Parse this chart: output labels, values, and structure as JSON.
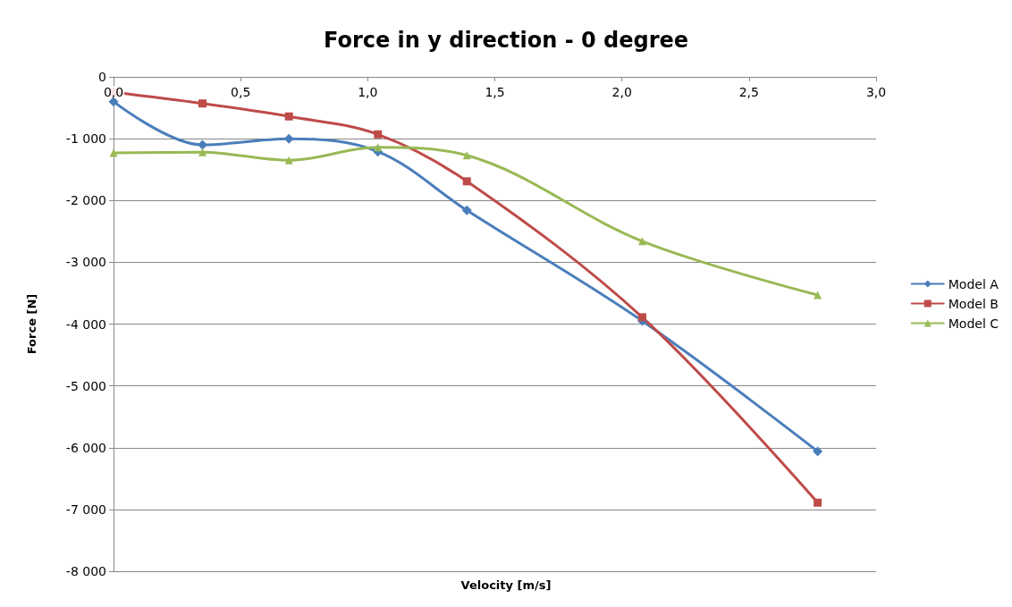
{
  "chart_data": {
    "type": "line",
    "title": "Force in y direction - 0 degree",
    "xlabel": "Velocity [m/s]",
    "ylabel": "Force [N]",
    "x": [
      0,
      0.35,
      0.69,
      1.04,
      1.39,
      2.08,
      2.77
    ],
    "series": [
      {
        "name": "Model A",
        "color": "#4a7ebb",
        "marker": "diamond",
        "values": [
          -400,
          -1100,
          -1000,
          -1210,
          -2160,
          -3950,
          -6060
        ]
      },
      {
        "name": "Model B",
        "color": "#be4b48",
        "marker": "square",
        "values": [
          -250,
          -430,
          -640,
          -930,
          -1690,
          -3890,
          -6890
        ]
      },
      {
        "name": "Model C",
        "color": "#98b954",
        "marker": "triangle",
        "values": [
          -1230,
          -1220,
          -1350,
          -1140,
          -1270,
          -2660,
          -3530
        ]
      }
    ],
    "xlim": [
      0,
      3
    ],
    "xticks": [
      {
        "value": 0,
        "label": "0,0"
      },
      {
        "value": 0.5,
        "label": "0,5"
      },
      {
        "value": 1,
        "label": "1,0"
      },
      {
        "value": 1.5,
        "label": "1,5"
      },
      {
        "value": 2,
        "label": "2,0"
      },
      {
        "value": 2.5,
        "label": "2,5"
      },
      {
        "value": 3,
        "label": "3,0"
      }
    ],
    "ylim": [
      -8000,
      0
    ],
    "yticks": [
      {
        "value": -8000,
        "label": "-8 000"
      },
      {
        "value": -7000,
        "label": "-7 000"
      },
      {
        "value": -6000,
        "label": "-6 000"
      },
      {
        "value": -5000,
        "label": "-5 000"
      },
      {
        "value": -4000,
        "label": "-4 000"
      },
      {
        "value": -3000,
        "label": "-3 000"
      },
      {
        "value": -2000,
        "label": "-2 000"
      },
      {
        "value": -1000,
        "label": "-1 000"
      },
      0
    ],
    "grid": "y",
    "legend": "right",
    "line_style": "solid"
  }
}
